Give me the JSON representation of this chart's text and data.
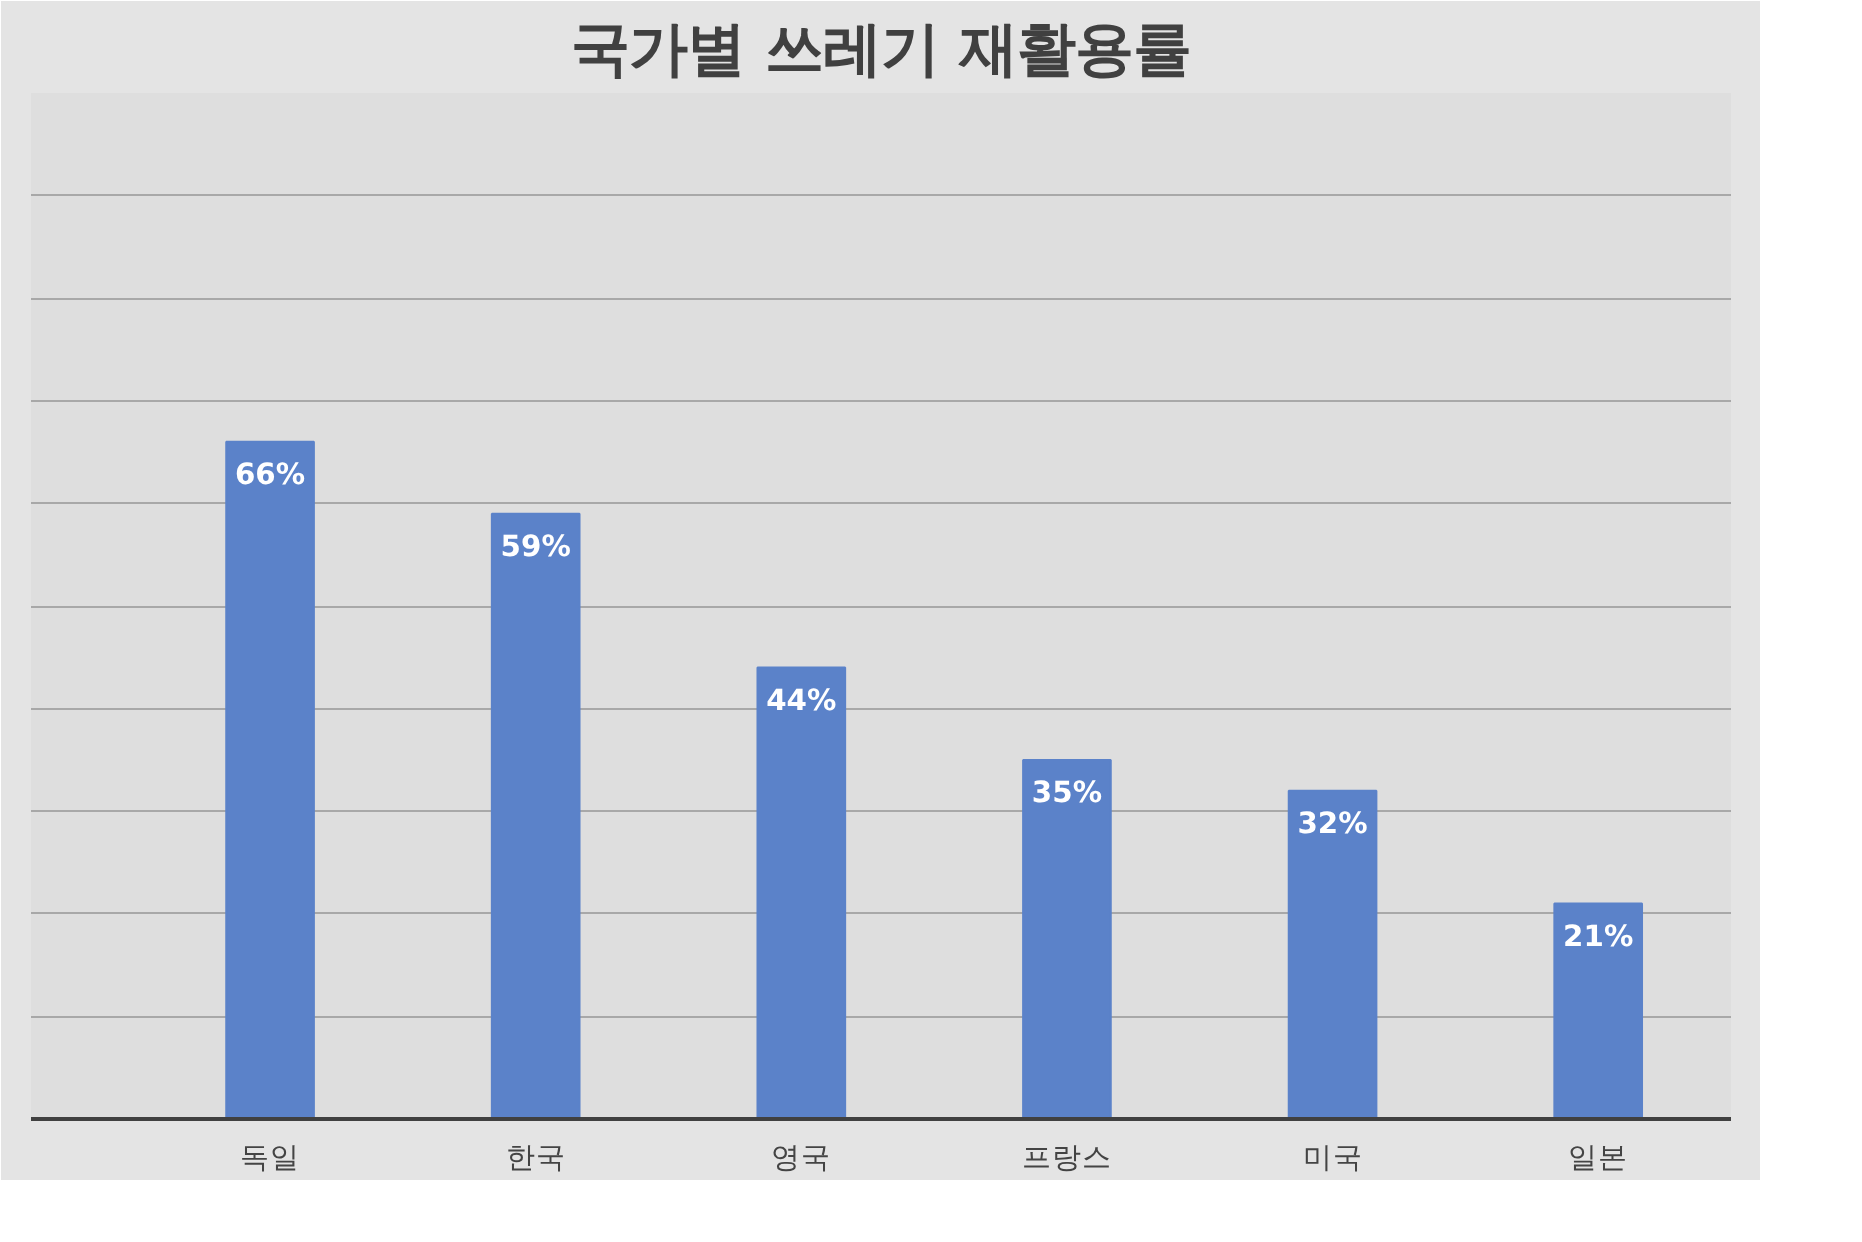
{
  "chart_data": {
    "type": "bar",
    "title": "국가별 쓰레기 재활용률",
    "categories": [
      "독일",
      "한국",
      "영국",
      "프랑스",
      "미국",
      "일본"
    ],
    "values": [
      66,
      59,
      44,
      35,
      32,
      21
    ],
    "color": "#5b82c9",
    "value_labels": [
      "66%",
      "59%",
      "44%",
      "35%",
      "32%",
      "21%"
    ],
    "ylim": [
      0,
      100
    ],
    "yticks": [
      {
        "value": 0,
        "label": null
      },
      {
        "value": 10,
        "label": null
      },
      {
        "value": 20,
        "label": null
      },
      {
        "value": 30,
        "label": null
      },
      {
        "value": 40,
        "label": null
      },
      {
        "value": 50,
        "label": null
      },
      {
        "value": 60,
        "label": null
      },
      {
        "value": 70,
        "label": null
      },
      {
        "value": 80,
        "label": null
      },
      {
        "value": 90,
        "label": null
      },
      {
        "value": 100,
        "label": null
      }
    ],
    "grid": "y",
    "tick_labels": "x"
  }
}
